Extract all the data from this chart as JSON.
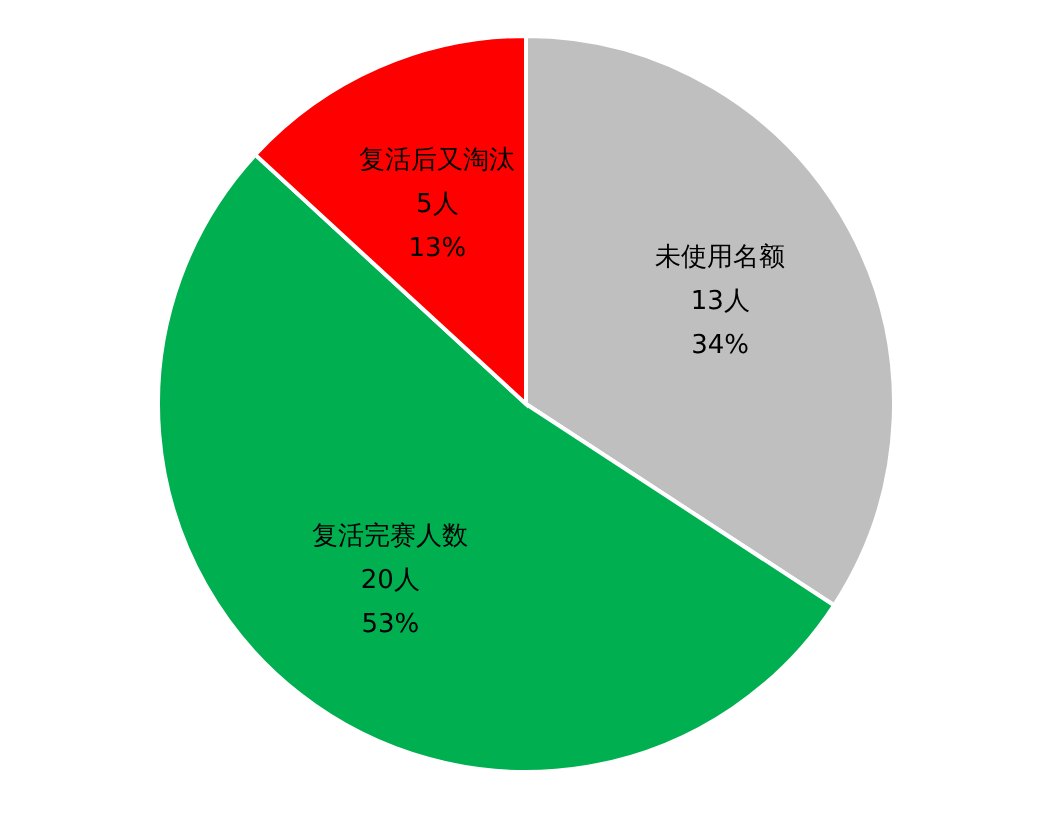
{
  "chart_data": {
    "type": "pie",
    "categories": [
      "未使用名额",
      "复活完赛人数",
      "复活后又淘汰"
    ],
    "values": [
      13,
      20,
      5
    ],
    "colors": [
      "#bfbfbf",
      "#00b050",
      "#ff0000"
    ],
    "value_labels": [
      "13人\n34%",
      "20人\n53%",
      "5人\n13%"
    ]
  }
}
